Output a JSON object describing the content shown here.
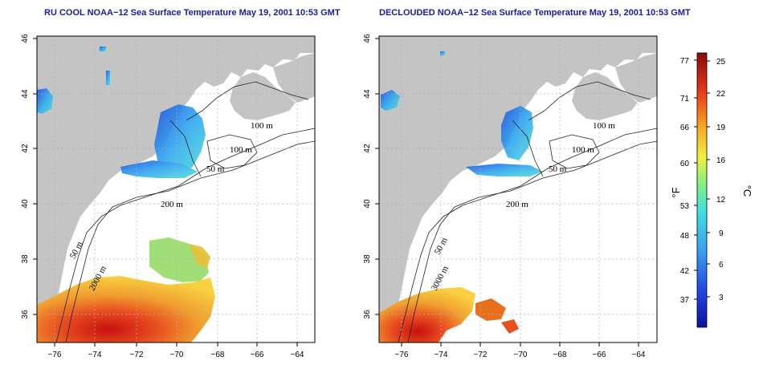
{
  "panels": [
    {
      "title": "RU COOL NOAA−12 Sea Surface Temperature May 19, 2001 10:53 GMT",
      "contour_labels": [
        "100 m",
        "100 m",
        "50 m",
        "200 m",
        "50 m",
        "2000 m"
      ]
    },
    {
      "title": "DECLOUDED NOAA−12 Sea Surface Temperature May 19, 2001 10:53 GMT",
      "contour_labels": [
        "100 m",
        "100 m",
        "50 m",
        "200 m",
        "50 m",
        "3000 m"
      ]
    }
  ],
  "axes": {
    "x_ticks": [
      "−76",
      "−74",
      "−72",
      "−70",
      "−68",
      "−66",
      "−64"
    ],
    "y_ticks": [
      "46",
      "44",
      "42",
      "40",
      "38",
      "36"
    ]
  },
  "colorbar": {
    "fahrenheit_ticks": [
      "77",
      "71",
      "66",
      "60",
      "53",
      "48",
      "42",
      "37"
    ],
    "celsius_ticks": [
      "25",
      "22",
      "19",
      "16",
      "12",
      "9",
      "6",
      "3"
    ],
    "unit_left": "°F",
    "unit_right": "°C"
  },
  "colors": {
    "land": "#c4c4c4",
    "title": "#1a1aa6",
    "warm": "#e8441a",
    "cool": "#2fa0e8"
  }
}
